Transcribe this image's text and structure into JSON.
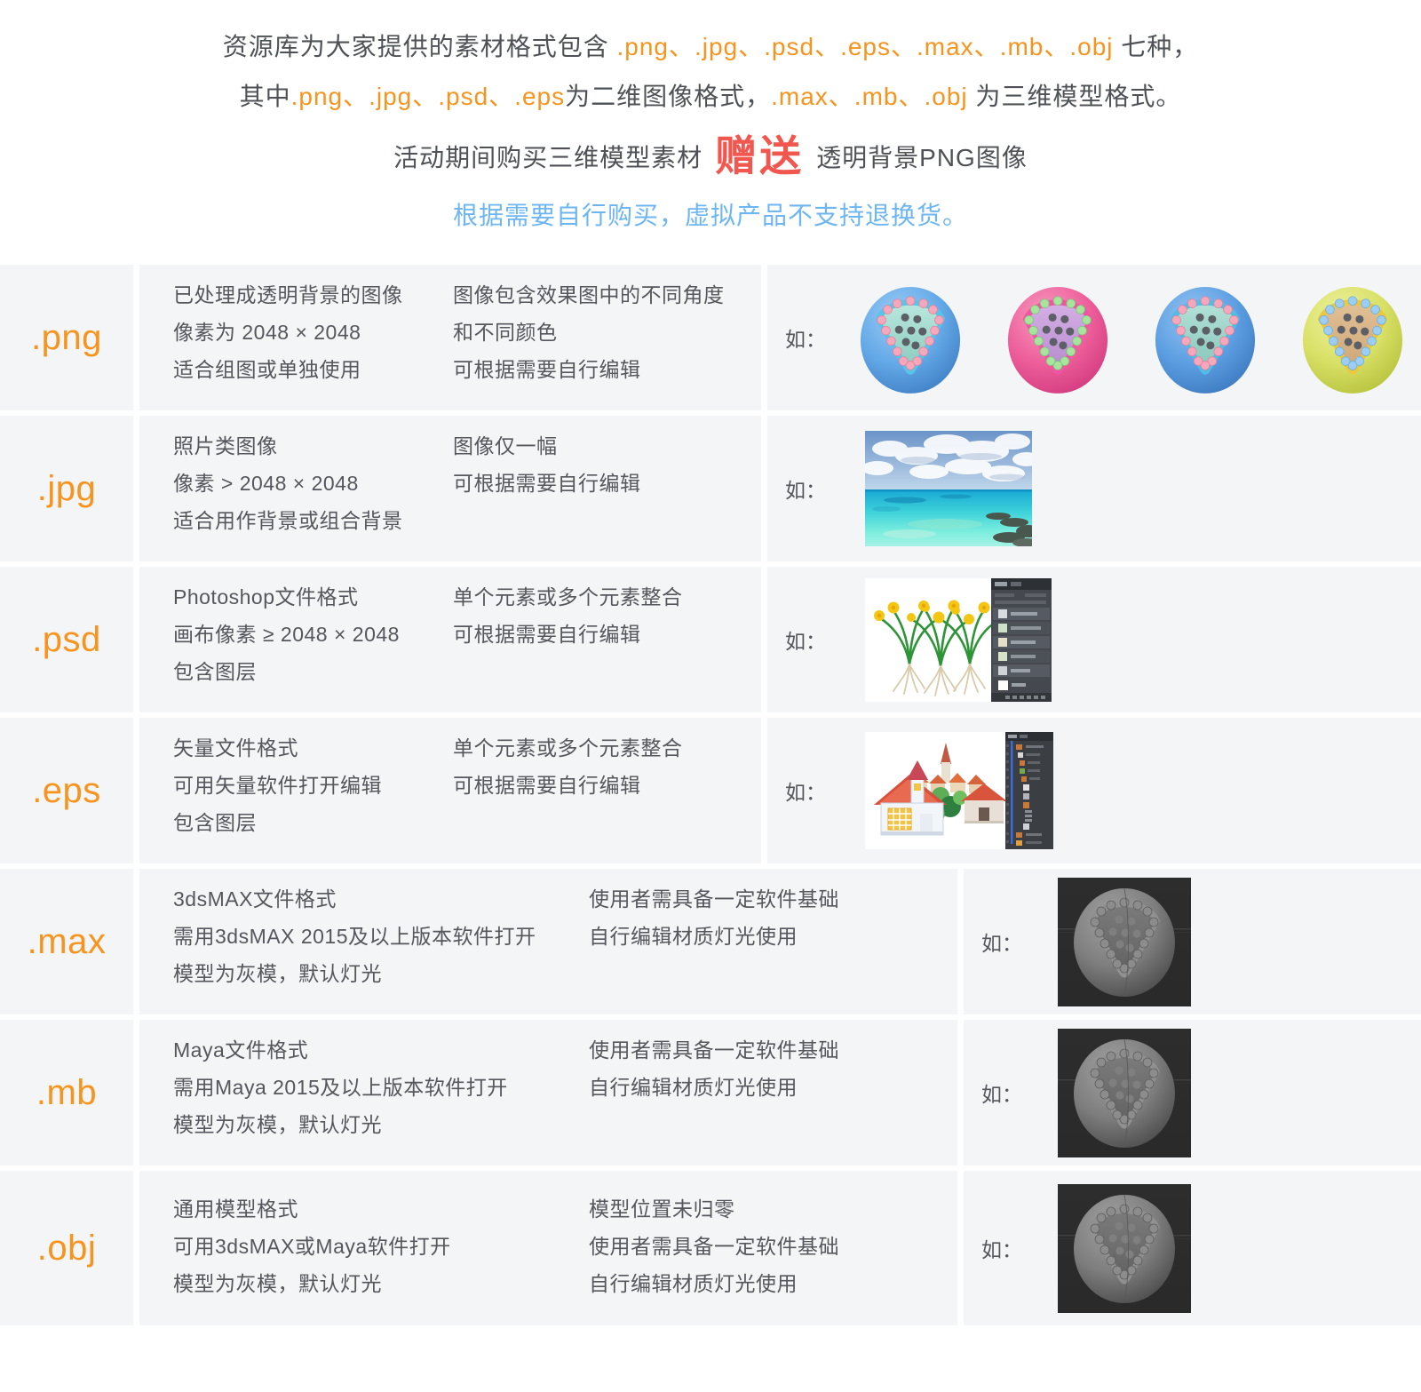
{
  "colors": {
    "row_bg": "#f4f5f7",
    "orange_accent": "#f7941e",
    "body_text": "#55575c",
    "notice_blue": "#6db6f2",
    "badge_red": "#f2574f",
    "model_viewport_bg": "#2a2a2a"
  },
  "intro": {
    "l1_pre": "资源库为大家提供的素材格式包含 ",
    "l1_formats": ".png、.jpg、.psd、.eps、.max、.mb、.obj",
    "l1_suf": " 七种，",
    "l2_pre": "其中",
    "l2_formats2d": ".png、.jpg、.psd、.eps",
    "l2_mid": "为二维图像格式，",
    "l2_formats3d": ".max、.mb、.obj",
    "l2_suf": " 为三维模型格式。"
  },
  "promo": {
    "pre": "活动期间购买三维模型素材",
    "badge": "赠送",
    "suf": "透明背景PNG图像"
  },
  "notice": "根据需要自行购买，虚拟产品不支持退换货。",
  "example_label": "如：",
  "rows": [
    {
      "format": ".png",
      "col1": [
        "已处理成透明背景的图像",
        "像素为 2048 × 2048",
        "适合组图或单独使用"
      ],
      "col2": [
        "图像包含效果图中的不同角度",
        "和不同颜色",
        "可根据需要自行编辑"
      ]
    },
    {
      "format": ".jpg",
      "col1": [
        "照片类图像",
        "像素 > 2048 × 2048",
        "适合用作背景或组合背景"
      ],
      "col2": [
        "图像仅一幅",
        "可根据需要自行编辑"
      ]
    },
    {
      "format": ".psd",
      "col1": [
        "Photoshop文件格式",
        "画布像素 ≥ 2048 × 2048",
        "包含图层"
      ],
      "col2": [
        "单个元素或多个元素整合",
        "可根据需要自行编辑"
      ]
    },
    {
      "format": ".eps",
      "col1": [
        "矢量文件格式",
        "可用矢量软件打开编辑",
        "包含图层"
      ],
      "col2": [
        "单个元素或多个元素整合",
        "可根据需要自行编辑"
      ]
    },
    {
      "format": ".max",
      "col1": [
        "3dsMAX文件格式",
        "需用3dsMAX 2015及以上版本软件打开",
        "模型为灰模，默认灯光"
      ],
      "col2": [
        "使用者需具备一定软件基础",
        "自行编辑材质灯光使用"
      ]
    },
    {
      "format": ".mb",
      "col1": [
        "Maya文件格式",
        "需用Maya 2015及以上版本软件打开",
        "模型为灰模，默认灯光"
      ],
      "col2": [
        "使用者需具备一定软件基础",
        "自行编辑材质灯光使用"
      ]
    },
    {
      "format": ".obj",
      "col1": [
        "通用模型格式",
        "可用3dsMAX或Maya软件打开",
        "模型为灰模，默认灯光"
      ],
      "col2": [
        "模型位置未归零",
        "使用者需具备一定软件基础",
        "自行编辑材质灯光使用"
      ]
    }
  ],
  "examples": {
    "png_spheres": [
      {
        "bodyLight": "#9ccdf5",
        "body": "#64a9e8",
        "bodyDark": "#3f7fc4",
        "rim": "#55c6ea",
        "faceLight": "#b8e6dc",
        "face": "#8cccc0",
        "ring": "#f5a8bc",
        "ringDark": "#e2829c",
        "dot": "#5c6066"
      },
      {
        "bodyLight": "#f79cc0",
        "body": "#ee5f9b",
        "bodyDark": "#d23a7e",
        "rim": "#f353a5",
        "faceLight": "#d4aee4",
        "face": "#b88cd0",
        "ring": "#a8e49e",
        "ringDark": "#7cc678",
        "dot": "#5c6066"
      },
      {
        "bodyLight": "#94c4f2",
        "body": "#5d9fe2",
        "bodyDark": "#3c79c0",
        "rim": "#4fbde6",
        "faceLight": "#b2e0d6",
        "face": "#88c8bc",
        "ring": "#f5a8bc",
        "ringDark": "#e2829c",
        "dot": "#5c6066"
      },
      {
        "bodyLight": "#eef2a0",
        "body": "#d9e066",
        "bodyDark": "#b6c23c",
        "rim": "#ecc83e",
        "faceLight": "#e0bf94",
        "face": "#cfa878",
        "ring": "#9ccdf2",
        "ringDark": "#70aede",
        "dot": "#5c6066"
      }
    ],
    "model": {
      "bg": "#2a2a2a",
      "line": "#3e3e3e",
      "seam": "#565656",
      "bodyLight": "#a2a2a2",
      "body": "#7e7e7e",
      "bodyDark": "#4a4a4a",
      "rim": "#909090",
      "faceLight": "#7a7a7a",
      "face": "#636363",
      "ring": "#8c8c8c",
      "ringDark": "#5e5e5e",
      "dot": "#7f7f7f"
    }
  }
}
